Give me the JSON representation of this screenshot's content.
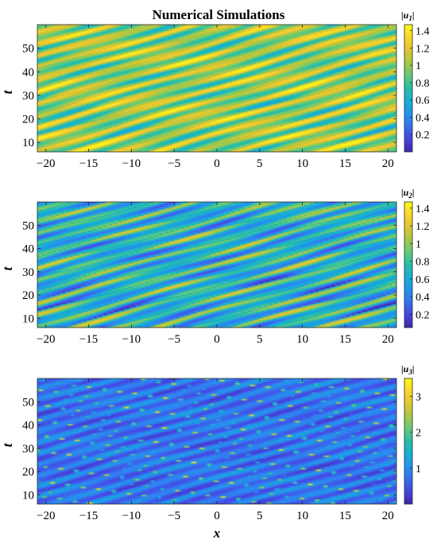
{
  "chart_data": [
    {
      "type": "heatmap",
      "title": "Numerical Simulations",
      "colorbar_label": "|u",
      "colorbar_sub": "1",
      "ylabel": "t",
      "xlabel": "",
      "xlim": [
        -21,
        21
      ],
      "ylim": [
        6,
        60
      ],
      "xticks": [
        -20,
        -15,
        -10,
        -5,
        0,
        5,
        10,
        15,
        20
      ],
      "yticks": [
        10,
        20,
        30,
        40,
        50
      ],
      "clim": [
        0,
        1.47
      ],
      "cticks": [
        0.2,
        0.4,
        0.6,
        0.8,
        1,
        1.2,
        1.4
      ],
      "field": {
        "base": 1.02,
        "amp": 0.4,
        "kx": 1.3,
        "kt": -1.3,
        "holes": 0.2
      },
      "colors": {
        "low": "#3e26a8",
        "mid": "#2ab5b0",
        "high": "#f9fb15"
      }
    },
    {
      "type": "heatmap",
      "title": "",
      "colorbar_label": "|u",
      "colorbar_sub": "2",
      "ylabel": "t",
      "xlabel": "",
      "xlim": [
        -21,
        21
      ],
      "ylim": [
        6,
        60
      ],
      "xticks": [
        -20,
        -15,
        -10,
        -5,
        0,
        5,
        10,
        15,
        20
      ],
      "yticks": [
        10,
        20,
        30,
        40,
        50
      ],
      "clim": [
        0.05,
        1.47
      ],
      "cticks": [
        0.2,
        0.4,
        0.6,
        0.8,
        1,
        1.2,
        1.4
      ],
      "field": {
        "base": 0.72,
        "amp": 0.45,
        "kx": 1.3,
        "kt": -1.3,
        "holes": 0.35
      },
      "colors": {
        "low": "#3e26a8",
        "mid": "#2ab5b0",
        "high": "#f9fb15"
      }
    },
    {
      "type": "heatmap",
      "title": "",
      "colorbar_label": "|u",
      "colorbar_sub": "3",
      "ylabel": "t",
      "xlabel": "x",
      "xlim": [
        -21,
        21
      ],
      "ylim": [
        6,
        60
      ],
      "xticks": [
        -20,
        -15,
        -10,
        -5,
        0,
        5,
        10,
        15,
        20
      ],
      "yticks": [
        10,
        20,
        30,
        40,
        50
      ],
      "clim": [
        0,
        3.5
      ],
      "cticks": [
        1,
        2,
        3
      ],
      "field": {
        "base": 0.75,
        "amp": 0.45,
        "kx": 1.4,
        "kt": -1.4,
        "holes": 0.1,
        "peaks": 2.4
      },
      "colors": {
        "low": "#3e26a8",
        "mid": "#2ab5b0",
        "high": "#f9fb15"
      }
    }
  ]
}
